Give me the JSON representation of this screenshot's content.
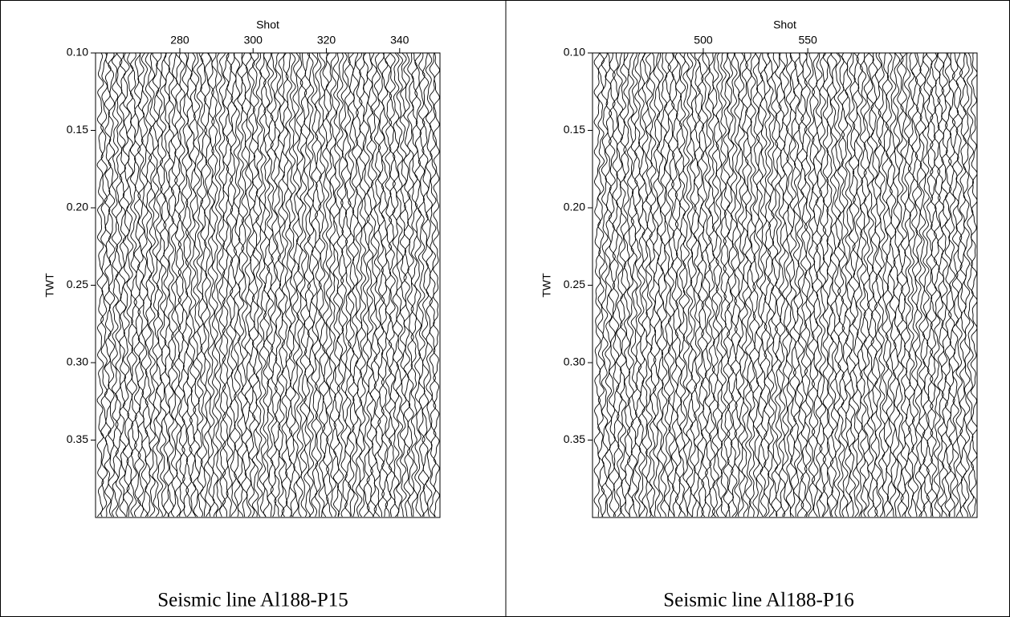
{
  "chart_data": [
    {
      "type": "wiggle",
      "x_label": "Shot",
      "y_label": "TWT",
      "caption": "Seismic line Al188-P15",
      "xlim": [
        257,
        351
      ],
      "xticks": [
        280,
        300,
        320,
        340
      ],
      "ylim": [
        0.1,
        0.4
      ],
      "y_inverted": true,
      "yticks": [
        {
          "value": 0.1,
          "label": "0.10"
        },
        0.15,
        {
          "value": 0.2,
          "label": "0.20"
        },
        0.25,
        {
          "value": 0.3,
          "label": "0.30"
        },
        0.35
      ]
    },
    {
      "type": "wiggle",
      "x_label": "Shot",
      "y_label": "TWT",
      "caption": "Seismic line Al188-P16",
      "xlim": [
        447,
        631
      ],
      "xticks": [
        500,
        550
      ],
      "ylim": [
        0.1,
        0.4
      ],
      "y_inverted": true,
      "yticks": [
        {
          "value": 0.1,
          "label": "0.10"
        },
        0.15,
        {
          "value": 0.2,
          "label": "0.20"
        },
        0.25,
        {
          "value": 0.3,
          "label": "0.30"
        },
        0.35
      ]
    }
  ]
}
